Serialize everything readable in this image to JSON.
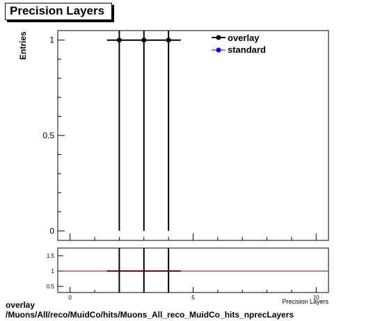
{
  "title": "Precision Layers",
  "footer": {
    "line1": "overlay",
    "line2": "/Muons/All/reco/MuidCo/hits/Muons_All_reco_MuidCo_hits_nprecLayers"
  },
  "chart_data": [
    {
      "type": "scatter",
      "ylabel": "Entries",
      "xlim": [
        -0.5,
        10.5
      ],
      "ylim": [
        -0.05,
        1.05
      ],
      "yticks": [
        0,
        0.5,
        1
      ],
      "ytick_labels": [
        "0",
        "0.5",
        "1"
      ],
      "grid": false,
      "legend_position": "top-right",
      "series": [
        {
          "name": "overlay",
          "color": "#000000",
          "points": [
            {
              "x": 2,
              "y": 1,
              "xerr": 0.5,
              "yerr": 1
            },
            {
              "x": 3,
              "y": 1,
              "xerr": 0.5,
              "yerr": 1
            },
            {
              "x": 4,
              "y": 1,
              "xerr": 0.5,
              "yerr": 1
            }
          ]
        },
        {
          "name": "standard",
          "color": "#0000ff",
          "points": []
        }
      ]
    },
    {
      "type": "scatter",
      "xlabel": "Precision Layers",
      "xlim": [
        -0.5,
        10.5
      ],
      "ylim": [
        0.3,
        1.75
      ],
      "xticks": [
        0,
        5,
        10
      ],
      "xtick_labels": [
        "0",
        "5",
        "10"
      ],
      "yticks": [
        0.5,
        1,
        1.5
      ],
      "ytick_labels": [
        "0.5",
        "1",
        "1.5"
      ],
      "reference_line": {
        "y": 1,
        "color": "#a00000"
      },
      "ratio_color": "#6b0000",
      "points": [
        {
          "x": 2,
          "y": 1,
          "xerr": 0.5
        },
        {
          "x": 3,
          "y": 1,
          "xerr": 0.5
        },
        {
          "x": 4,
          "y": 1,
          "xerr": 0.5
        }
      ]
    }
  ]
}
